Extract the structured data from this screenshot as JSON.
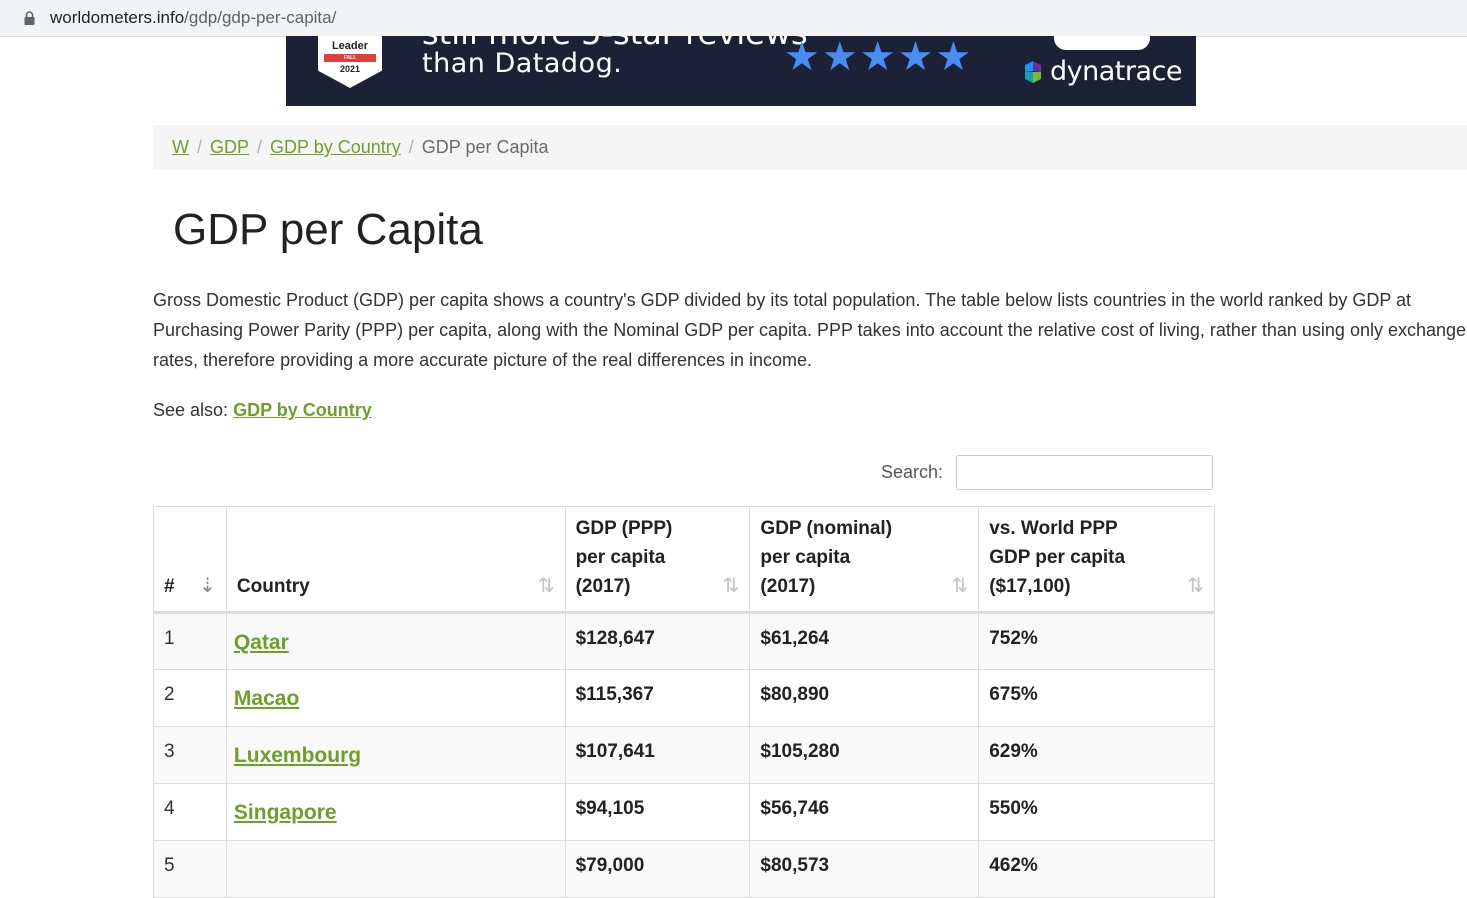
{
  "browser": {
    "url_host": "worldometers.info",
    "url_path": "/gdp/gdp-per-capita/"
  },
  "ad": {
    "badge_title": "Leader",
    "badge_season": "FALL",
    "badge_year": "2021",
    "headline_partial": "still more 5-star reviews",
    "headline": "than Datadog.",
    "stars": "★★★★★",
    "brand": "dynatrace",
    "colors": {
      "background": "#1b2236",
      "stars": "#4a8cf5"
    }
  },
  "breadcrumb": {
    "items": [
      {
        "label": "W"
      },
      {
        "label": "GDP"
      },
      {
        "label": "GDP by Country"
      }
    ],
    "separator": "/",
    "current": "GDP per Capita"
  },
  "page": {
    "title": "GDP per Capita",
    "description": "Gross Domestic Product (GDP) per capita shows a country's GDP divided by its total population. The table below lists countries in the world ranked by GDP at Purchasing Power Parity (PPP) per capita, along with the Nominal GDP per capita. PPP takes into account the relative cost of living, rather than using only exchange rates, therefore providing a more accurate picture of the real differences in income.",
    "see_also_label": "See also:",
    "see_also_link": "GDP by Country",
    "link_color": "#6d9f2b"
  },
  "search": {
    "label": "Search:",
    "value": "",
    "placeholder": ""
  },
  "table": {
    "headers": {
      "rank": "#",
      "country": "Country",
      "gdp_ppp_l1": "GDP (PPP)",
      "gdp_ppp_l2": "per capita",
      "gdp_ppp_l3": "(2017)",
      "gdp_nom_l1": "GDP (nominal)",
      "gdp_nom_l2": "per capita",
      "gdp_nom_l3": "(2017)",
      "vs_l1": "vs. World PPP",
      "vs_l2": "GDP per capita",
      "vs_l3": "($17,100)"
    },
    "sort_icon": "⇅",
    "sort_active_icon": "⇣",
    "rows": [
      {
        "rank": "1",
        "country": "Qatar",
        "gdp_ppp": "$128,647",
        "gdp_nominal": "$61,264",
        "vs_world": "752%"
      },
      {
        "rank": "2",
        "country": "Macao",
        "gdp_ppp": "$115,367",
        "gdp_nominal": "$80,890",
        "vs_world": "675%"
      },
      {
        "rank": "3",
        "country": "Luxembourg",
        "gdp_ppp": "$107,641",
        "gdp_nominal": "$105,280",
        "vs_world": "629%"
      },
      {
        "rank": "4",
        "country": "Singapore",
        "gdp_ppp": "$94,105",
        "gdp_nominal": "$56,746",
        "vs_world": "550%"
      },
      {
        "rank": "5",
        "country": "",
        "gdp_ppp": "$79,000",
        "gdp_nominal": "$80,573",
        "vs_world": "462%"
      }
    ]
  }
}
